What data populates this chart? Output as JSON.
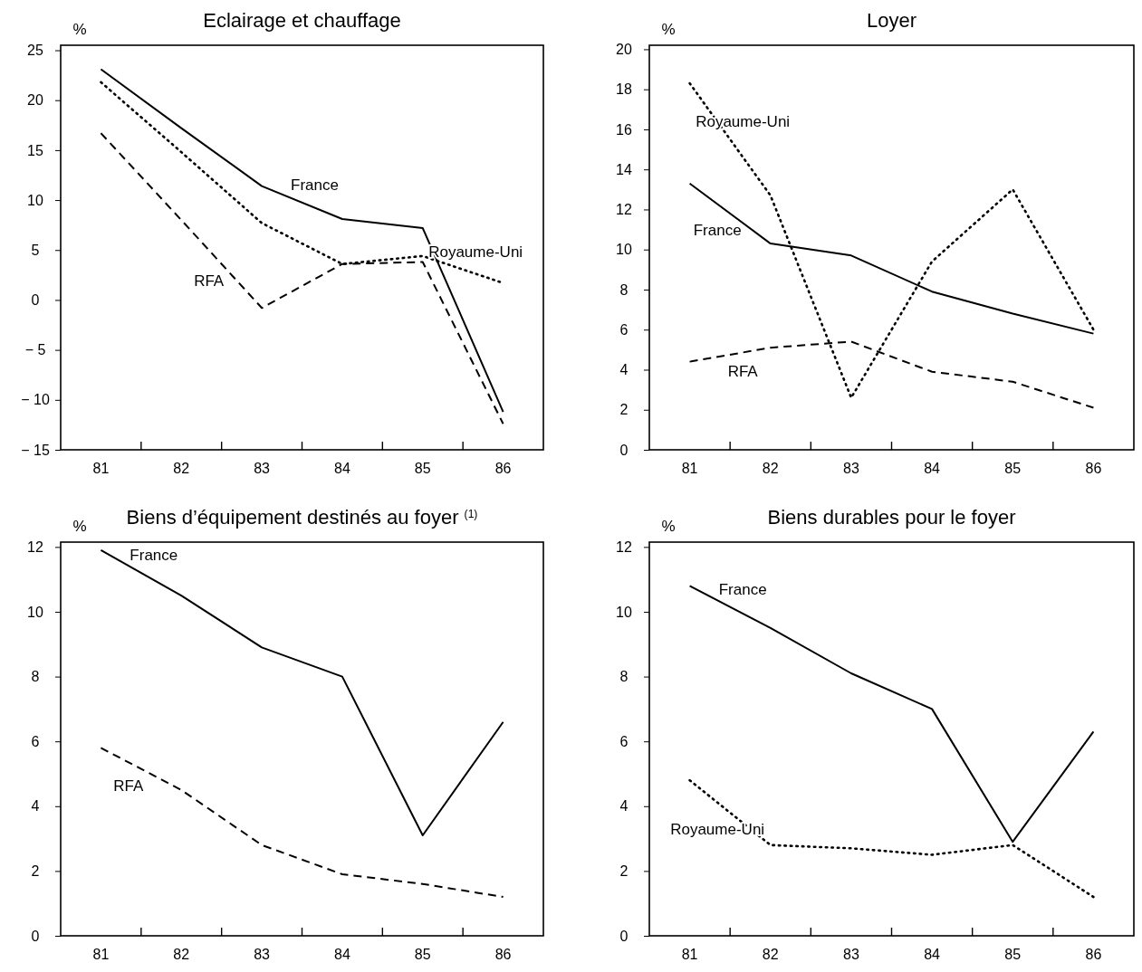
{
  "chart_data": [
    {
      "type": "line",
      "title": "Eclairage et chauffage",
      "ylabel": "%",
      "categories": [
        "81",
        "82",
        "83",
        "84",
        "85",
        "86"
      ],
      "ylim": [
        -15,
        25.5
      ],
      "yticks": [
        {
          "value": -15,
          "label": "− 15"
        },
        {
          "value": -10,
          "label": "− 10"
        },
        {
          "value": -5,
          "label": "− 5"
        },
        0,
        5,
        10,
        15,
        20,
        25
      ],
      "grid": false,
      "legend": false,
      "marker": "none",
      "series": [
        {
          "name": "France",
          "color": "#000000",
          "line_style": "solid",
          "values": [
            23.1,
            17.2,
            11.4,
            8.1,
            7.2,
            -11.2
          ]
        },
        {
          "name": "Royaume-Uni",
          "color": "#000000",
          "line_style": "dotted",
          "values": [
            21.8,
            14.8,
            7.7,
            3.6,
            4.4,
            1.7
          ]
        },
        {
          "name": "RFA",
          "color": "#000000",
          "line_style": "dashed",
          "values": [
            16.7,
            8,
            -0.8,
            3.6,
            3.8,
            -12.4
          ]
        }
      ]
    },
    {
      "type": "line",
      "title": "Loyer",
      "ylabel": "%",
      "categories": [
        "81",
        "82",
        "83",
        "84",
        "85",
        "86"
      ],
      "ylim": [
        0,
        20.2
      ],
      "yticks": [
        0,
        2,
        4,
        6,
        8,
        10,
        12,
        14,
        16,
        18,
        20
      ],
      "grid": false,
      "legend": false,
      "marker": "none",
      "series": [
        {
          "name": "Royaume-Uni",
          "color": "#000000",
          "line_style": "dotted",
          "values": [
            18.3,
            12.7,
            2.6,
            9.4,
            13.0,
            6.0
          ]
        },
        {
          "name": "France",
          "color": "#000000",
          "line_style": "solid",
          "values": [
            13.3,
            10.3,
            9.7,
            7.9,
            6.8,
            5.8
          ]
        },
        {
          "name": "RFA",
          "color": "#000000",
          "line_style": "dashed",
          "values": [
            4.4,
            5.1,
            5.4,
            3.9,
            3.4,
            2.1
          ]
        }
      ]
    },
    {
      "type": "line",
      "title": "Biens d’équipement destinés au foyer $^{(1)}$",
      "ylabel": "%",
      "categories": [
        "81",
        "82",
        "83",
        "84",
        "85",
        "86"
      ],
      "ylim": [
        0,
        12.15
      ],
      "yticks": [
        0,
        2,
        4,
        6,
        8,
        10,
        12
      ],
      "grid": false,
      "legend": false,
      "marker": "none",
      "series": [
        {
          "name": "France",
          "color": "#000000",
          "line_style": "solid",
          "values": [
            11.9,
            10.5,
            8.9,
            8.0,
            3.1,
            6.6
          ]
        },
        {
          "name": "RFA",
          "color": "#000000",
          "line_style": "dashed",
          "values": [
            5.8,
            4.5,
            2.8,
            1.9,
            1.6,
            1.2
          ]
        }
      ]
    },
    {
      "type": "line",
      "title": "Biens durables pour le foyer",
      "ylabel": "%",
      "categories": [
        "81",
        "82",
        "83",
        "84",
        "85",
        "86"
      ],
      "ylim": [
        0,
        12.15
      ],
      "yticks": [
        0,
        2,
        4,
        6,
        8,
        10,
        12
      ],
      "grid": false,
      "legend": false,
      "marker": "none",
      "series": [
        {
          "name": "France",
          "color": "#000000",
          "line_style": "solid",
          "values": [
            10.8,
            9.5,
            8.1,
            7.0,
            2.9,
            6.3
          ]
        },
        {
          "name": "Royaume-Uni",
          "color": "#000000",
          "line_style": "dotted",
          "values": [
            4.8,
            2.8,
            2.7,
            2.5,
            2.8,
            1.2
          ]
        }
      ]
    }
  ]
}
